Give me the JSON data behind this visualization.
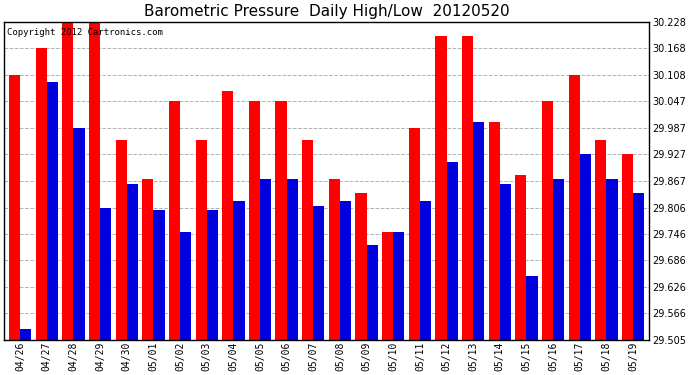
{
  "title": "Barometric Pressure  Daily High/Low  20120520",
  "copyright": "Copyright 2012 Cartronics.com",
  "categories": [
    "04/26",
    "04/27",
    "04/28",
    "04/29",
    "04/30",
    "05/01",
    "05/02",
    "05/03",
    "05/04",
    "05/05",
    "05/06",
    "05/07",
    "05/08",
    "05/09",
    "05/10",
    "05/11",
    "05/12",
    "05/13",
    "05/14",
    "05/15",
    "05/16",
    "05/17",
    "05/18",
    "05/19"
  ],
  "high": [
    30.108,
    30.168,
    30.228,
    30.248,
    29.96,
    29.87,
    30.047,
    29.96,
    30.07,
    30.047,
    30.047,
    29.96,
    29.87,
    29.84,
    29.75,
    29.987,
    30.195,
    30.195,
    30.0,
    29.88,
    30.047,
    30.108,
    29.96,
    29.927
  ],
  "low": [
    29.53,
    30.09,
    29.987,
    29.806,
    29.86,
    29.8,
    29.75,
    29.8,
    29.82,
    29.87,
    29.87,
    29.81,
    29.82,
    29.72,
    29.75,
    29.82,
    29.91,
    30.0,
    29.86,
    29.65,
    29.87,
    29.927,
    29.87,
    29.84
  ],
  "bar_width": 0.42,
  "high_color": "#ff0000",
  "low_color": "#0000dd",
  "bg_color": "#ffffff",
  "grid_color": "#aaaaaa",
  "ymin": 29.505,
  "ymax": 30.228,
  "yticks": [
    29.505,
    29.566,
    29.626,
    29.686,
    29.746,
    29.806,
    29.867,
    29.927,
    29.987,
    30.047,
    30.108,
    30.168,
    30.228
  ],
  "title_fontsize": 11,
  "copyright_fontsize": 6.5,
  "tick_fontsize": 7
}
